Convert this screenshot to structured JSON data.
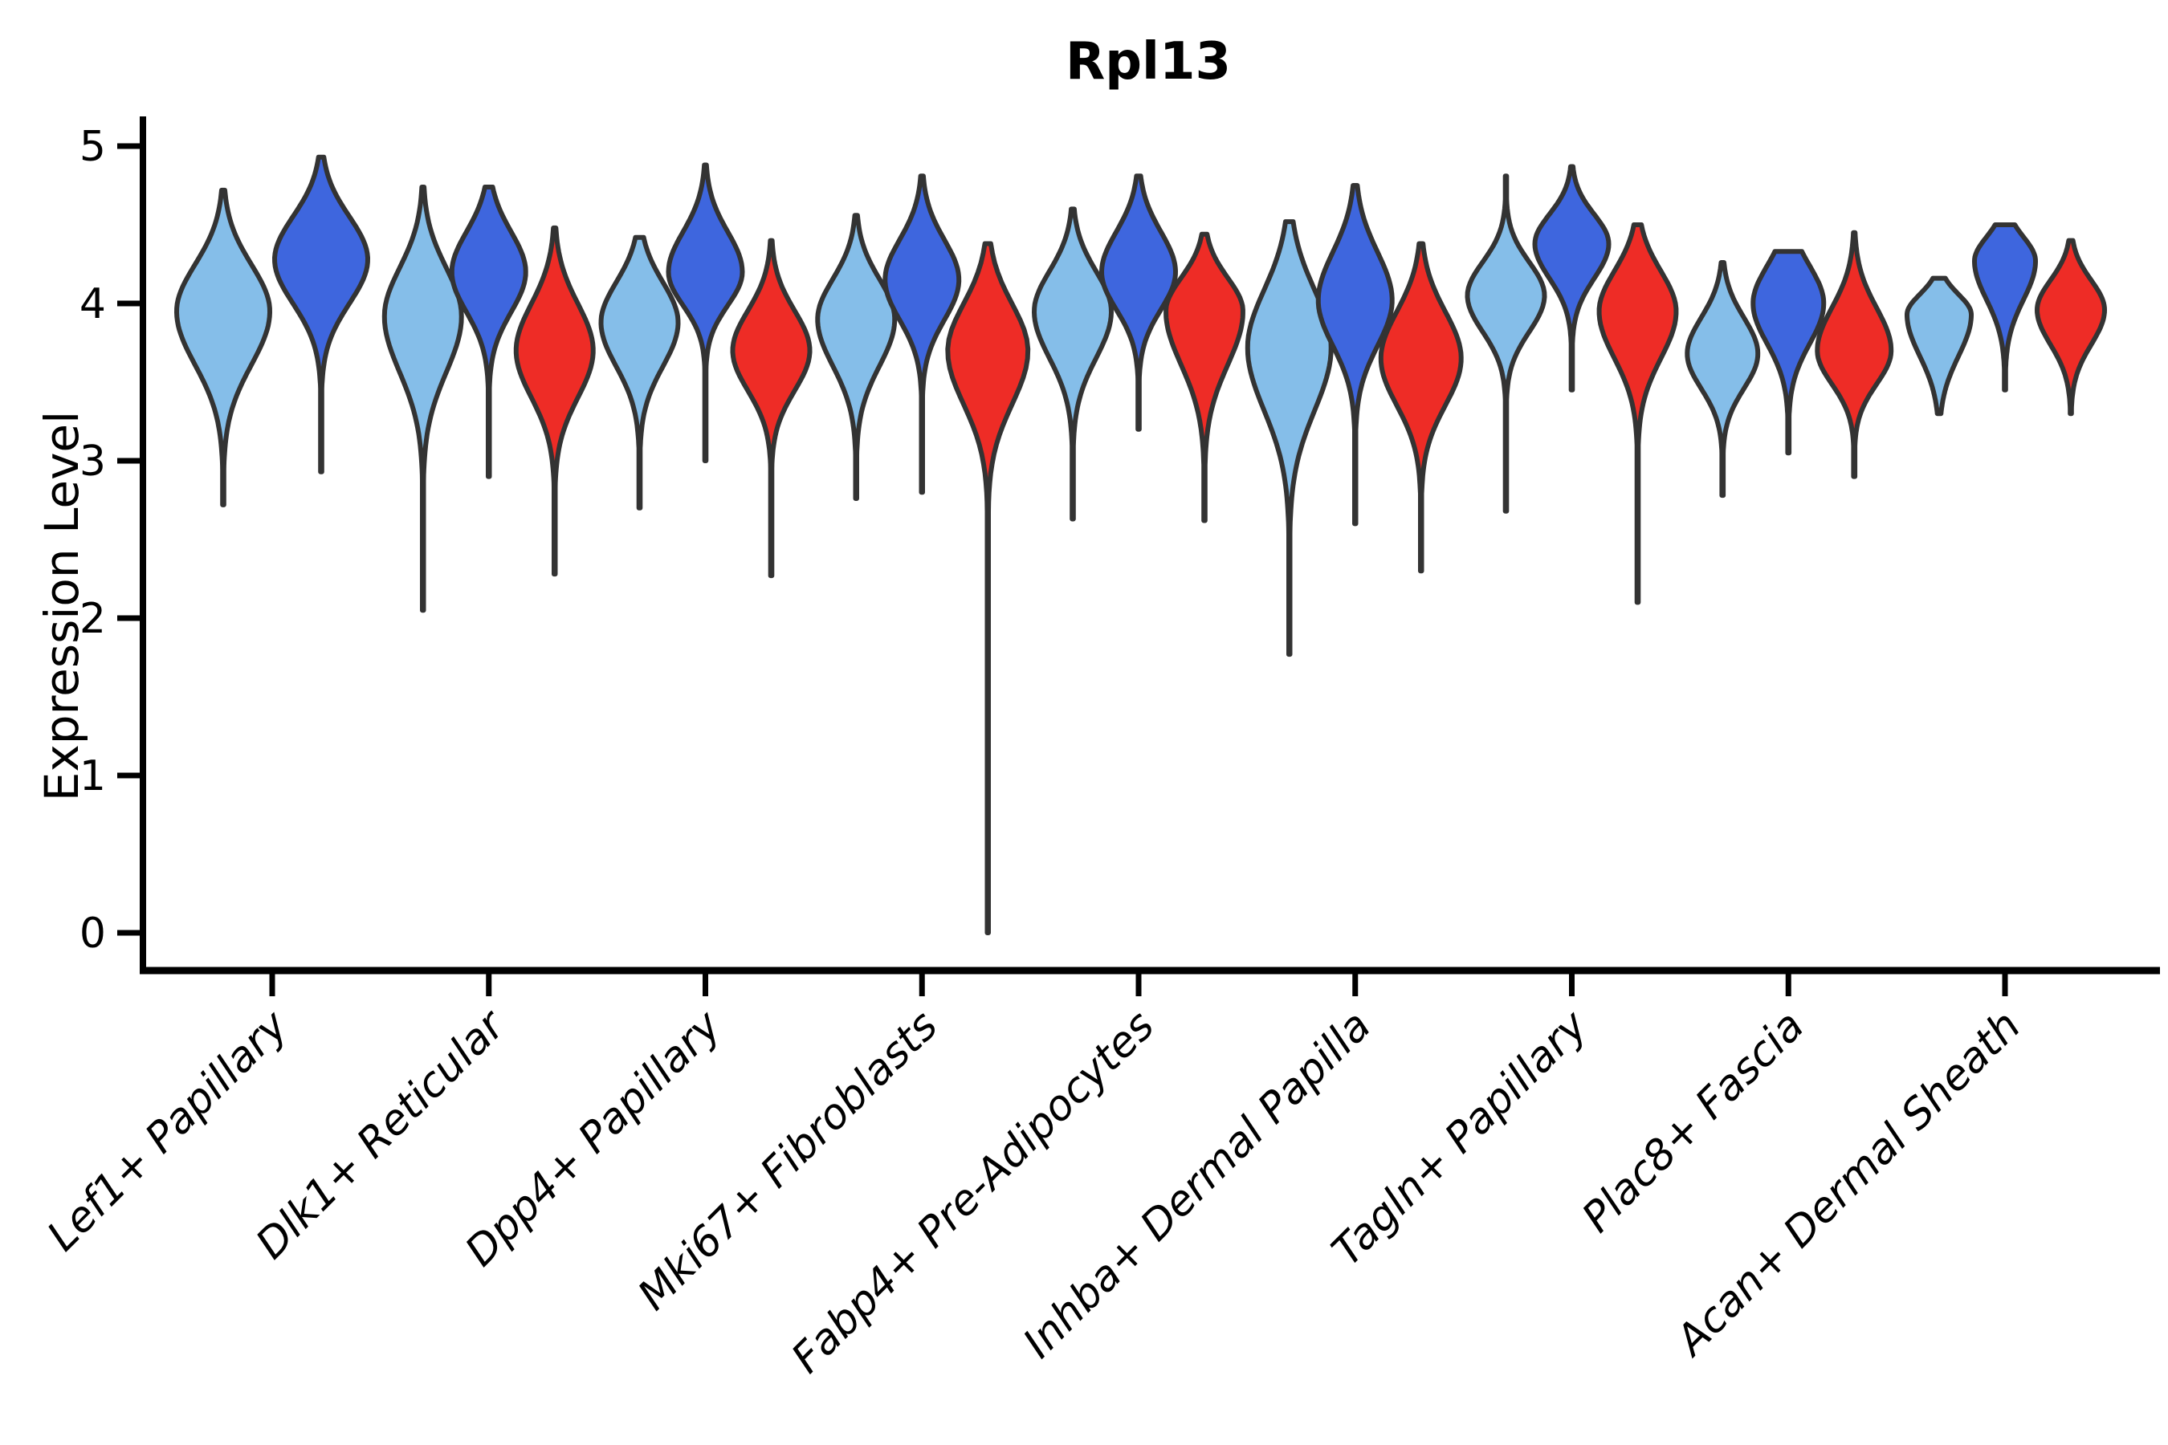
{
  "chart_data": {
    "type": "violin",
    "title": "Rpl13",
    "xlabel": "",
    "ylabel": "Expression Level",
    "ylim": [
      0,
      5
    ],
    "yticks": [
      0,
      1,
      2,
      3,
      4,
      5
    ],
    "grid": "off",
    "legend": "none",
    "outline_color": "#333333",
    "axis_color": "#000000",
    "background_color": "#ffffff",
    "categories": [
      "Lef1+ Papillary",
      "Dlk1+ Reticular",
      "Dpp4+ Papillary",
      "Mki67+ Fibroblasts",
      "Fabp4+ Pre-Adipocytes",
      "Inhba+ Dermal Papilla",
      "Tagln+ Papillary",
      "Plac8+ Fascia",
      "Acan+ Dermal Sheath"
    ],
    "series": [
      {
        "key": "split-1",
        "color": "#85BEE9"
      },
      {
        "key": "split-2",
        "color": "#3E66DE"
      },
      {
        "key": "split-3",
        "color": "#EE2C26"
      }
    ],
    "violins": [
      {
        "category": "Lef1+ Papillary",
        "parts": [
          {
            "series": 0,
            "min": 2.72,
            "max": 4.72,
            "peak": 3.95,
            "fwhm": [
              3.55,
              4.3
            ],
            "hw": 58
          },
          {
            "series": 1,
            "min": 2.93,
            "max": 4.93,
            "peak": 4.28,
            "fwhm": [
              3.95,
              4.6
            ],
            "hw": 58
          }
        ]
      },
      {
        "category": "Dlk1+ Reticular",
        "parts": [
          {
            "series": 0,
            "min": 2.05,
            "max": 4.74,
            "peak": 3.92,
            "fwhm": [
              3.5,
              4.28
            ],
            "hw": 48
          },
          {
            "series": 1,
            "min": 2.9,
            "max": 4.74,
            "peak": 4.2,
            "fwhm": [
              3.9,
              4.5
            ],
            "hw": 46
          },
          {
            "series": 2,
            "min": 2.28,
            "max": 4.48,
            "peak": 3.7,
            "fwhm": [
              3.35,
              4.05
            ],
            "hw": 48
          }
        ]
      },
      {
        "category": "Dpp4+ Papillary",
        "parts": [
          {
            "series": 0,
            "min": 2.7,
            "max": 4.42,
            "peak": 3.88,
            "fwhm": [
              3.55,
              4.18
            ],
            "hw": 48
          },
          {
            "series": 1,
            "min": 3.0,
            "max": 4.88,
            "peak": 4.2,
            "fwhm": [
              3.95,
              4.5
            ],
            "hw": 46
          },
          {
            "series": 2,
            "min": 2.27,
            "max": 4.4,
            "peak": 3.7,
            "fwhm": [
              3.4,
              4.0
            ],
            "hw": 48
          }
        ]
      },
      {
        "category": "Mki67+ Fibroblasts",
        "parts": [
          {
            "series": 0,
            "min": 2.76,
            "max": 4.56,
            "peak": 3.9,
            "fwhm": [
              3.55,
              4.2
            ],
            "hw": 48
          },
          {
            "series": 1,
            "min": 2.8,
            "max": 4.81,
            "peak": 4.15,
            "fwhm": [
              3.85,
              4.45
            ],
            "hw": 46
          },
          {
            "series": 2,
            "min": 0.0,
            "max": 4.38,
            "peak": 3.7,
            "fwhm": [
              3.3,
              4.05
            ],
            "hw": 50
          }
        ]
      },
      {
        "category": "Fabp4+ Pre-Adipocytes",
        "parts": [
          {
            "series": 0,
            "min": 2.63,
            "max": 4.6,
            "peak": 3.95,
            "fwhm": [
              3.6,
              4.25
            ],
            "hw": 48
          },
          {
            "series": 1,
            "min": 3.2,
            "max": 4.81,
            "peak": 4.2,
            "fwhm": [
              3.92,
              4.5
            ],
            "hw": 46
          },
          {
            "series": 2,
            "min": 2.62,
            "max": 4.44,
            "peak": 3.95,
            "fwhm": [
              3.55,
              4.2
            ],
            "hw": 48
          }
        ]
      },
      {
        "category": "Inhba+ Dermal Papilla",
        "parts": [
          {
            "series": 0,
            "min": 1.77,
            "max": 4.52,
            "peak": 3.72,
            "fwhm": [
              3.25,
              4.15
            ],
            "hw": 52
          },
          {
            "series": 1,
            "min": 2.6,
            "max": 4.75,
            "peak": 4.02,
            "fwhm": [
              3.68,
              4.38
            ],
            "hw": 46
          },
          {
            "series": 2,
            "min": 2.3,
            "max": 4.38,
            "peak": 3.65,
            "fwhm": [
              3.3,
              4.0
            ],
            "hw": 50
          }
        ]
      },
      {
        "category": "Tagln+ Papillary",
        "parts": [
          {
            "series": 0,
            "min": 2.68,
            "max": 4.81,
            "peak": 4.05,
            "fwhm": [
              3.78,
              4.3
            ],
            "hw": 48
          },
          {
            "series": 1,
            "min": 3.45,
            "max": 4.87,
            "peak": 4.38,
            "fwhm": [
              4.12,
              4.6
            ],
            "hw": 46
          },
          {
            "series": 2,
            "min": 2.1,
            "max": 4.5,
            "peak": 3.95,
            "fwhm": [
              3.6,
              4.25
            ],
            "hw": 48
          }
        ]
      },
      {
        "category": "Plac8+ Fascia",
        "parts": [
          {
            "series": 0,
            "min": 2.78,
            "max": 4.26,
            "peak": 3.68,
            "fwhm": [
              3.42,
              3.95
            ],
            "hw": 44
          },
          {
            "series": 1,
            "min": 3.05,
            "max": 4.33,
            "peak": 4.0,
            "fwhm": [
              3.7,
              4.28
            ],
            "hw": 44
          },
          {
            "series": 2,
            "min": 2.9,
            "max": 4.45,
            "peak": 3.7,
            "fwhm": [
              3.45,
              4.02
            ],
            "hw": 46
          }
        ]
      },
      {
        "category": "Acan+ Dermal Sheath",
        "parts": [
          {
            "series": 0,
            "min": 3.3,
            "max": 4.16,
            "peak": 3.93,
            "fwhm": [
              3.62,
              4.08
            ],
            "hw": 40
          },
          {
            "series": 1,
            "min": 3.45,
            "max": 4.5,
            "peak": 4.27,
            "fwhm": [
              3.98,
              4.45
            ],
            "hw": 38
          },
          {
            "series": 2,
            "min": 3.3,
            "max": 4.4,
            "peak": 3.96,
            "fwhm": [
              3.7,
              4.18
            ],
            "hw": 42
          }
        ]
      }
    ]
  }
}
